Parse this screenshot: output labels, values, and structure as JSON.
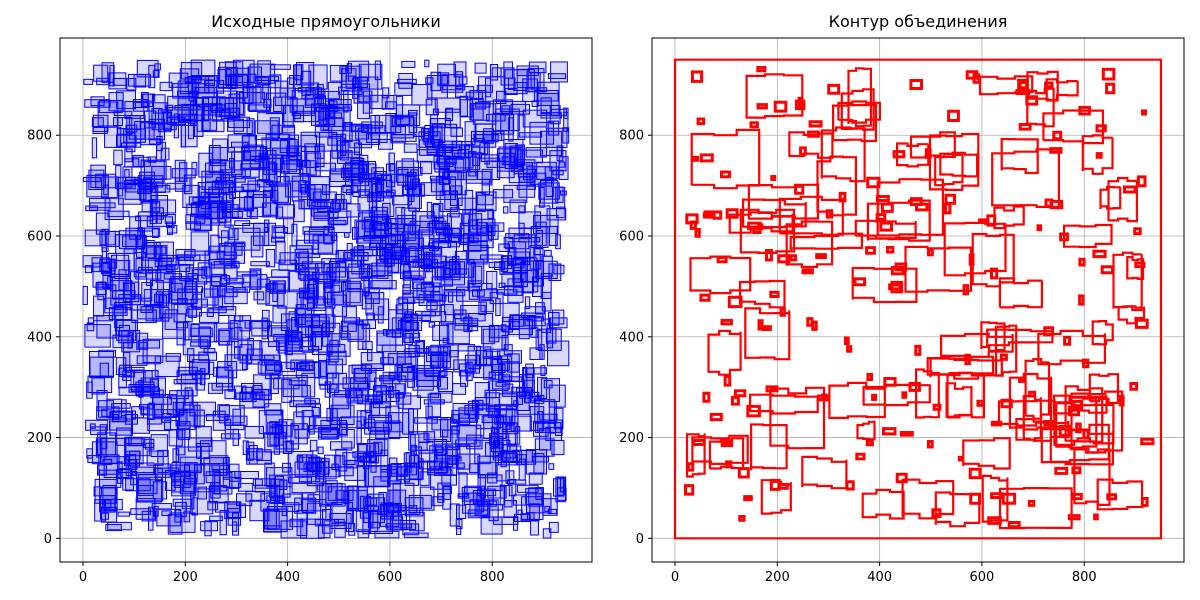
{
  "chart_data": [
    {
      "type": "scatter",
      "title": "Исходные прямоугольники",
      "xlabel": "",
      "ylabel": "",
      "xlim": [
        -45,
        995
      ],
      "ylim": [
        -47,
        993
      ],
      "xticks": [
        0,
        200,
        400,
        600,
        800
      ],
      "yticks": [
        0,
        200,
        400,
        600,
        800
      ],
      "grid": true,
      "series": [
        {
          "color": "#0000ff",
          "fill": "#0000ff",
          "fill_opacity": 0.15,
          "marker": "rectangle-outline",
          "extent": {
            "x": [
              0,
              950
            ],
            "y": [
              0,
              950
            ]
          },
          "approx_count": 2000
        }
      ]
    },
    {
      "type": "line",
      "title": "Контур объединения",
      "xlabel": "",
      "ylabel": "",
      "xlim": [
        -45,
        995
      ],
      "ylim": [
        -47,
        993
      ],
      "xticks": [
        0,
        200,
        400,
        600,
        800
      ],
      "yticks": [
        0,
        200,
        400,
        600,
        800
      ],
      "grid": true,
      "series": [
        {
          "color": "#ff0000",
          "marker": "polygon-outline",
          "outer_boundary": [
            [
              0,
              0
            ],
            [
              950,
              0
            ],
            [
              950,
              950
            ],
            [
              0,
              950
            ]
          ]
        }
      ]
    }
  ]
}
